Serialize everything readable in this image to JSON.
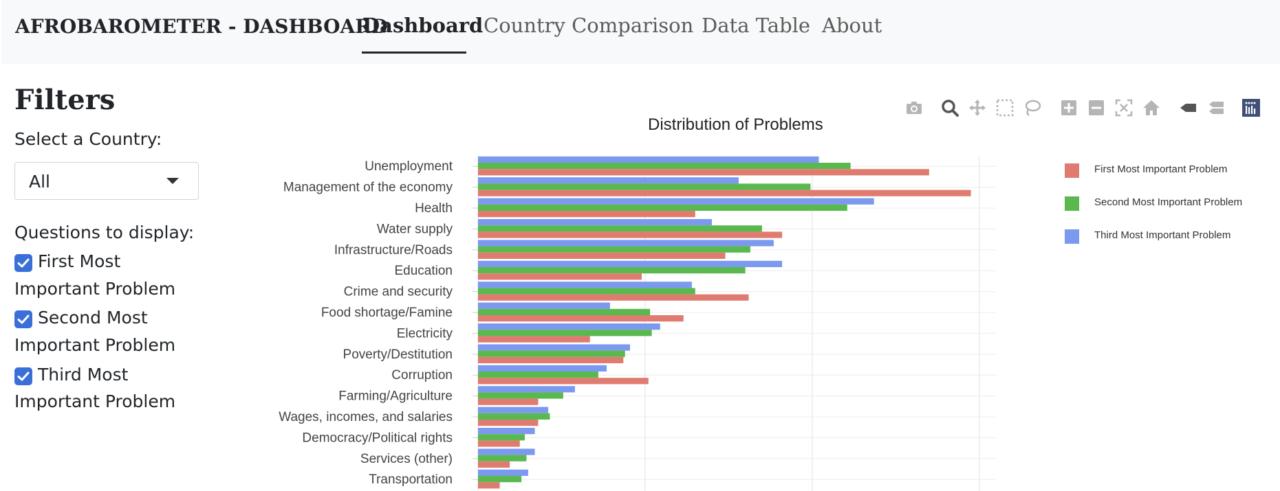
{
  "navbar": {
    "brand": "AFROBAROMETER - DASHBOARD",
    "links": [
      {
        "label": "Dashboard",
        "active": true
      },
      {
        "label": "Country Comparison",
        "active": false
      },
      {
        "label": "Data Table",
        "active": false
      },
      {
        "label": "About",
        "active": false
      }
    ]
  },
  "filters": {
    "title": "Filters",
    "country_label": "Select a Country:",
    "country_value": "All",
    "questions_label": "Questions to display:",
    "checkboxes": [
      {
        "line1": "First Most",
        "line2": "Important Problem",
        "checked": true
      },
      {
        "line1": "Second Most",
        "line2": "Important Problem",
        "checked": true
      },
      {
        "line1": "Third Most",
        "line2": "Important Problem",
        "checked": true
      }
    ]
  },
  "toolbar_icons": [
    "camera-icon",
    "zoom-icon",
    "pan-icon",
    "box-select-icon",
    "lasso-select-icon",
    "zoom-in-icon",
    "zoom-out-icon",
    "autoscale-icon",
    "reset-axes-icon",
    "hover-closest-icon",
    "hover-compare-icon",
    "plotly-logo-icon"
  ],
  "chart_data": {
    "type": "bar",
    "orientation": "horizontal",
    "title": "Distribution of Problems",
    "categories": [
      "Unemployment",
      "Management of the economy",
      "Health",
      "Water supply",
      "Infrastructure/Roads",
      "Education",
      "Crime and security",
      "Food shortage/Famine",
      "Electricity",
      "Poverty/Destitution",
      "Corruption",
      "Farming/Agriculture",
      "Wages, incomes, and salaries",
      "Democracy/Political rights",
      "Services (other)",
      "Transportation"
    ],
    "series": [
      {
        "name": "First Most Important Problem",
        "color": "#e07b70",
        "values": [
          2700,
          2950,
          1300,
          1820,
          1480,
          980,
          1620,
          1230,
          670,
          870,
          1020,
          360,
          360,
          250,
          190,
          130
        ]
      },
      {
        "name": "Second Most Important Problem",
        "color": "#5ab94e",
        "values": [
          2230,
          1990,
          2210,
          1700,
          1630,
          1600,
          1300,
          1030,
          1040,
          880,
          720,
          510,
          430,
          280,
          290,
          260
        ]
      },
      {
        "name": "Third Most Important Problem",
        "color": "#7b99ee",
        "values": [
          2040,
          1560,
          2370,
          1400,
          1770,
          1820,
          1280,
          790,
          1090,
          910,
          770,
          580,
          420,
          340,
          340,
          300
        ]
      }
    ],
    "xlim": [
      0,
      3100
    ],
    "grid": true,
    "legend_position": "top-right"
  }
}
